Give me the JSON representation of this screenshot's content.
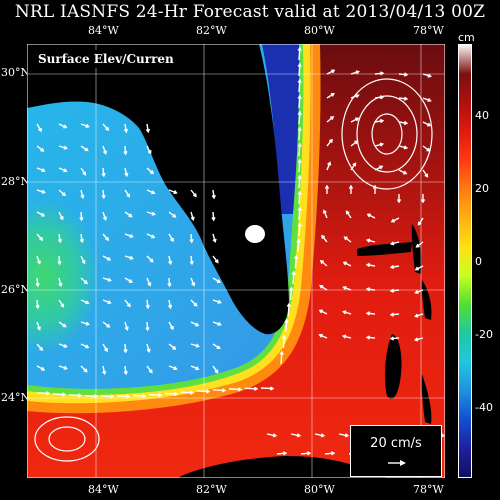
{
  "title": "NRL IASNFS 24-Hr Forecast valid at 2013/04/13 00Z",
  "panel_label": "Surface Elev/Curren",
  "lon_labels": [
    "84°W",
    "82°W",
    "80°W",
    "78°W"
  ],
  "lat_labels": [
    "30°N",
    "28°N",
    "26°N",
    "24°N"
  ],
  "colorbar": {
    "unit": "cm",
    "ticks": [
      "40",
      "20",
      "0",
      "-20",
      "-40"
    ],
    "colors": [
      "#fbf7f2",
      "#7a1010",
      "#b01010",
      "#e01a10",
      "#ff3a10",
      "#ff7a10",
      "#ffb010",
      "#ffe010",
      "#c8ff20",
      "#50e030",
      "#20c8a0",
      "#20c8e0",
      "#2090e0",
      "#1050d0",
      "#2020a0",
      "#101060"
    ]
  },
  "scale": {
    "label": "20 cm/s"
  },
  "colors": {
    "land": "#000000",
    "gulf_cyan": "#20b8e8",
    "gulf_blue": "#3a8ae8",
    "gulf_green": "#30d0a0",
    "stream_yellow": "#ffe020",
    "atlantic_red": "#e82010",
    "atlantic_dark": "#8a1010",
    "east_coast_blue": "#1a30b0"
  }
}
